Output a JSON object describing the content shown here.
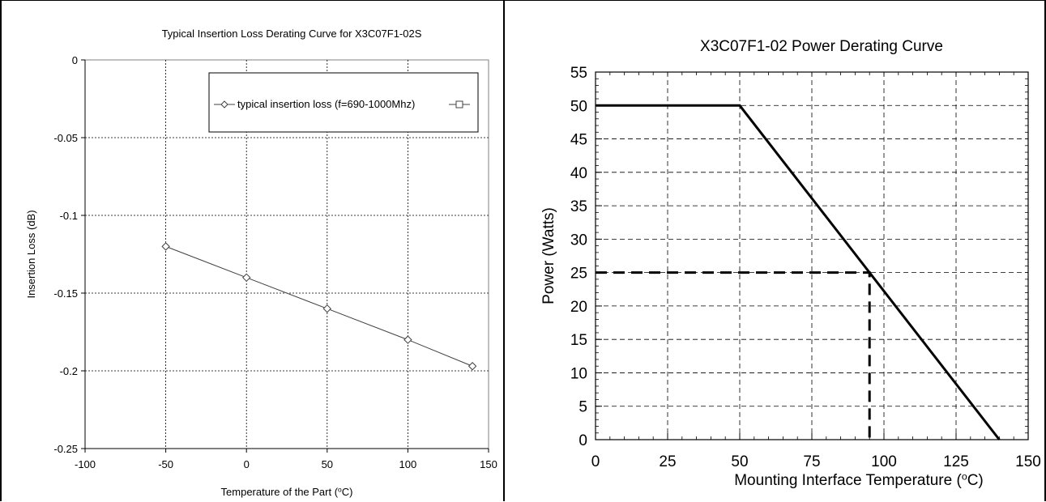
{
  "chart_data": [
    {
      "type": "line",
      "title": "Typical Insertion  Loss Derating Curve for X3C07F1-02S",
      "xlabel": "Temperature of the Part (",
      "xlabel_sup": "o",
      "xlabel_end": "C)",
      "ylabel": "Insertion Loss (dB)",
      "xlim": [
        -100,
        150
      ],
      "ylim": [
        -0.25,
        0
      ],
      "x_ticks": [
        -100,
        -50,
        0,
        50,
        100,
        150
      ],
      "x_tick_labels": [
        "-100",
        "-50",
        "0",
        "50",
        "100",
        "150"
      ],
      "y_ticks": [
        0,
        -0.05,
        -0.1,
        -0.15,
        -0.2,
        -0.25
      ],
      "y_tick_labels": [
        "0",
        "-0.05",
        "-0.1",
        "-0.15",
        "-0.2",
        "-0.25"
      ],
      "grid": true,
      "legend_position": "top-right",
      "series": [
        {
          "name": "typical insertion loss (f=690-1000Mhz)",
          "marker": "diamond",
          "color": "#404040",
          "x": [
            -50,
            0,
            50,
            100,
            140
          ],
          "y": [
            -0.12,
            -0.14,
            -0.16,
            -0.18,
            -0.197
          ]
        },
        {
          "name": "",
          "marker": "square",
          "color": "#404040",
          "x": [],
          "y": []
        }
      ]
    },
    {
      "type": "line",
      "title": "X3C07F1-02 Power Derating Curve",
      "xlabel": "Mounting Interface Temperature (",
      "xlabel_sup": "o",
      "xlabel_end": "C)",
      "ylabel": "Power (Watts)",
      "xlim": [
        0,
        150
      ],
      "ylim": [
        0,
        55
      ],
      "x_ticks": [
        0,
        25,
        50,
        75,
        100,
        125,
        150
      ],
      "x_tick_labels": [
        "0",
        "25",
        "50",
        "75",
        "100",
        "125",
        "150"
      ],
      "y_ticks": [
        0,
        5,
        10,
        15,
        20,
        25,
        30,
        35,
        40,
        45,
        50,
        55
      ],
      "y_tick_labels": [
        "0",
        "5",
        "10",
        "15",
        "20",
        "25",
        "30",
        "35",
        "40",
        "45",
        "50",
        "55"
      ],
      "grid": true,
      "series": [
        {
          "name": "",
          "style": "solid",
          "color": "#000000",
          "x": [
            0,
            50,
            140
          ],
          "y": [
            50,
            50,
            0
          ]
        },
        {
          "name": "",
          "style": "dashed",
          "color": "#000000",
          "x": [
            0,
            95,
            95
          ],
          "y": [
            25,
            25,
            0
          ]
        }
      ]
    }
  ]
}
